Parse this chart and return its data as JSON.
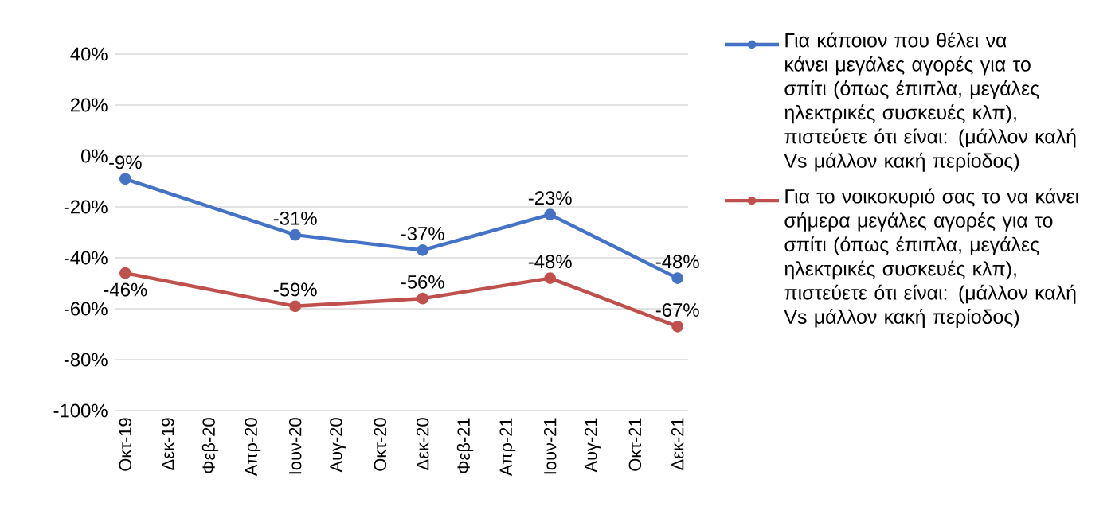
{
  "chart_data": {
    "type": "line",
    "x": [
      "2019-10",
      "2020-06",
      "2020-12",
      "2021-06",
      "2021-12"
    ],
    "series": [
      {
        "name": "Για κάποιον που θέλει να κάνει μεγάλες αγορές για το σπίτι (όπως έπιπλα, μεγάλες ηλεκτρικές συσκευές κλπ), πιστεύετε ότι είναι: (μάλλον καλή Vs μάλλον κακή περίοδος)",
        "color": "#4472c4",
        "values": [
          -9,
          -31,
          -37,
          -23,
          -48
        ],
        "value_labels": [
          "-9%",
          "-31%",
          "-37%",
          "-23%",
          "-48%"
        ]
      },
      {
        "name": "Για το νοικοκυριό σας το να κάνει σήμερα μεγάλες αγορές για το σπίτι (όπως έπιπλα, μεγάλες ηλεκτρικές συσκευές κλπ), πιστεύετε ότι είναι: (μάλλον καλή Vs μάλλον κακή περίοδος)",
        "color": "#c0504d",
        "values": [
          -46,
          -59,
          -56,
          -48,
          -67
        ],
        "value_labels": [
          "-46%",
          "-59%",
          "-56%",
          "-48%",
          "-67%"
        ]
      }
    ],
    "xlim": [
      "2019-09-16",
      "2021-12-16"
    ],
    "xticks": [
      {
        "value": "2019-10",
        "label": "Οκτ-19"
      },
      {
        "value": "2019-12",
        "label": "Δεκ-19"
      },
      {
        "value": "2020-02",
        "label": "Φεβ-20"
      },
      {
        "value": "2020-04",
        "label": "Απρ-20"
      },
      {
        "value": "2020-06",
        "label": "Ιουν-20"
      },
      {
        "value": "2020-08",
        "label": "Αυγ-20"
      },
      {
        "value": "2020-10",
        "label": "Οκτ-20"
      },
      {
        "value": "2020-12",
        "label": "Δεκ-20"
      },
      {
        "value": "2021-02",
        "label": "Φεβ-21"
      },
      {
        "value": "2021-04",
        "label": "Απρ-21"
      },
      {
        "value": "2021-06",
        "label": "Ιουν-21"
      },
      {
        "value": "2021-08",
        "label": "Αυγ-21"
      },
      {
        "value": "2021-10",
        "label": "Οκτ-21"
      },
      {
        "value": "2021-12",
        "label": "Δεκ-21"
      }
    ],
    "ylim": [
      -100,
      40
    ],
    "yticks": [
      {
        "value": 40,
        "label": "40%"
      },
      {
        "value": 20,
        "label": "20%"
      },
      {
        "value": 0,
        "label": "0%"
      },
      {
        "value": -20,
        "label": "-20%"
      },
      {
        "value": -40,
        "label": "-40%"
      },
      {
        "value": -60,
        "label": "-60%"
      },
      {
        "value": -80,
        "label": "-80%"
      },
      {
        "value": -100,
        "label": "-100%"
      }
    ],
    "grid": "y",
    "legend": "right",
    "marker": "circle",
    "line_style": "solid"
  }
}
